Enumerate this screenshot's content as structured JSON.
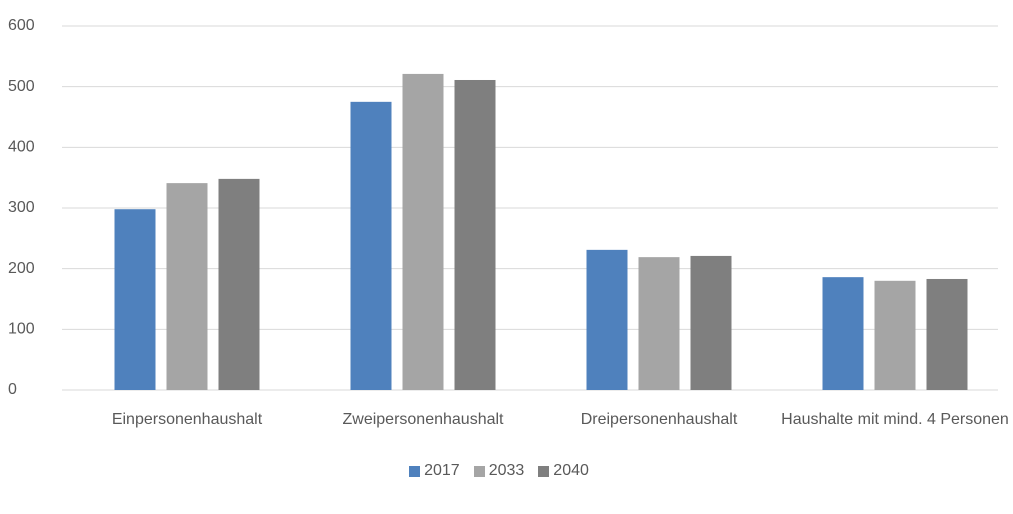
{
  "chart_data": {
    "type": "bar",
    "categories": [
      "Einpersonenhaushalt",
      "Zweipersonenhaushalt",
      "Dreipersonenhaushalt",
      "Haushalte mit mind. 4 Personen"
    ],
    "series": [
      {
        "name": "2017",
        "color": "#4f81bd",
        "values": [
          298,
          475,
          231,
          186
        ]
      },
      {
        "name": "2033",
        "color": "#a5a5a5",
        "values": [
          341,
          521,
          219,
          180
        ]
      },
      {
        "name": "2040",
        "color": "#7f7f7f",
        "values": [
          348,
          511,
          221,
          183
        ]
      }
    ],
    "ylim": [
      0,
      600
    ],
    "yticks": [
      0,
      100,
      200,
      300,
      400,
      500,
      600
    ],
    "grid": true,
    "legend": "bottom"
  }
}
